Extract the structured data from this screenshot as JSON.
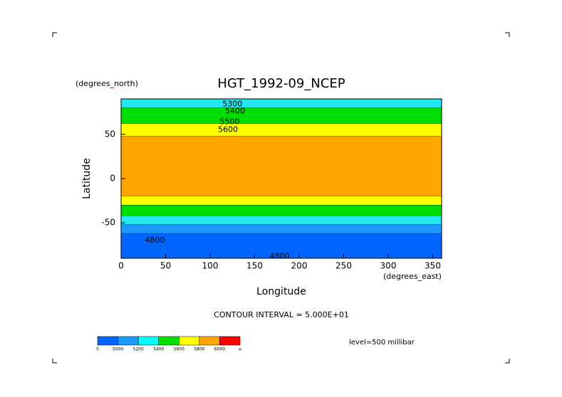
{
  "chart_data": {
    "type": "contour_map",
    "title": "HGT_1992-09_NCEP",
    "y_units": "(degrees_north)",
    "x_units": "(degrees_east)",
    "ylabel": "Latitude",
    "xlabel": "Longitude",
    "xlim": [
      0,
      360
    ],
    "ylim": [
      -90,
      90
    ],
    "xticks": [
      0,
      50,
      100,
      150,
      200,
      250,
      300,
      350
    ],
    "yticks": [
      -50,
      0,
      50
    ],
    "bands": [
      {
        "from": 90,
        "to": 80,
        "color": "#22e6f0"
      },
      {
        "from": 80,
        "to": 62,
        "color": "#00dd00"
      },
      {
        "from": 62,
        "to": 48,
        "color": "#ffff00"
      },
      {
        "from": 48,
        "to": -20,
        "color": "#ffa500"
      },
      {
        "from": -20,
        "to": -30,
        "color": "#ffff00"
      },
      {
        "from": -30,
        "to": -42,
        "color": "#00dd00"
      },
      {
        "from": -42,
        "to": -52,
        "color": "#22e6f0"
      },
      {
        "from": -52,
        "to": -62,
        "color": "#1e9bff"
      },
      {
        "from": -62,
        "to": -90,
        "color": "#0066ff"
      }
    ],
    "contour_labels": [
      5300,
      5400,
      5500,
      5600,
      4800,
      4800
    ],
    "contour_interval": "CONTOUR INTERVAL = 5.000E+01",
    "level": "level=500 millibar",
    "colorbar": {
      "levels": [
        0,
        5000,
        5200,
        5400,
        5600,
        5800,
        6000
      ],
      "top_label": "∞",
      "colors": [
        "#0066ff",
        "#1e9bff",
        "#00ffff",
        "#00dd00",
        "#ffff00",
        "#ffa500",
        "#ff0000"
      ]
    }
  }
}
